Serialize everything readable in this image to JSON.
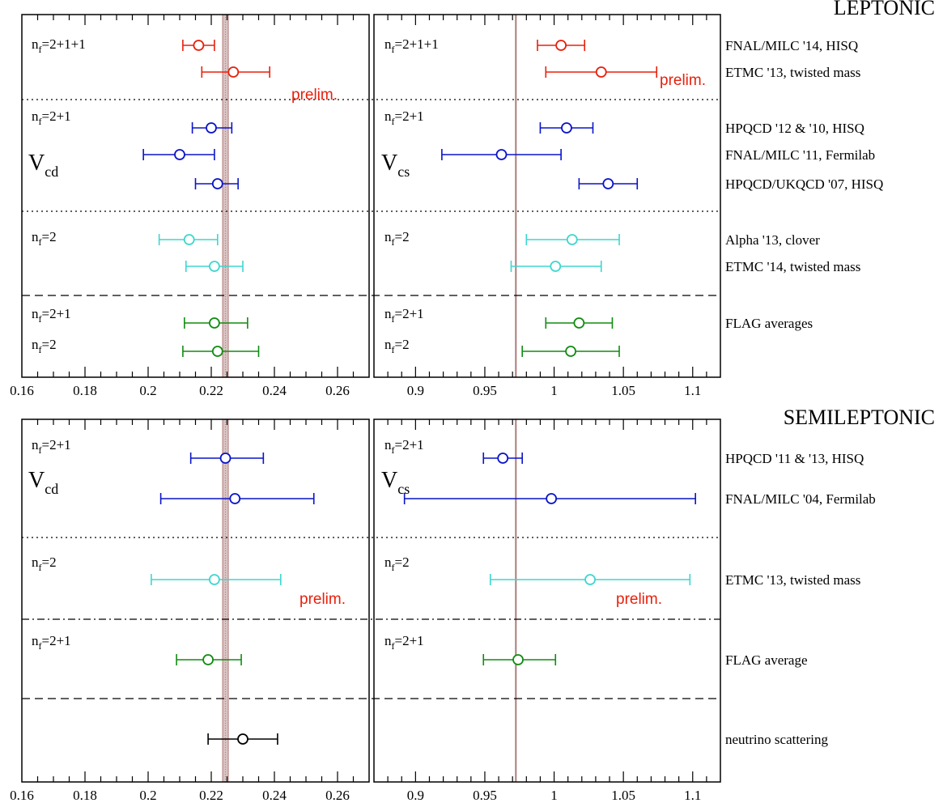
{
  "colors": {
    "red": "#e8200c",
    "blue": "#0a14c8",
    "cyan": "#3fd6cf",
    "green": "#108c10",
    "black": "#000000",
    "band": "#b07a7a"
  },
  "sections": {
    "leptonic": "LEPTONIC",
    "semileptonic": "SEMILEPTONIC"
  },
  "axes": {
    "vcd": {
      "xlim": [
        0.16,
        0.27
      ],
      "ticks": [
        "0.16",
        "0.18",
        "0.2",
        "0.22",
        "0.24",
        "0.26"
      ],
      "tick_values": [
        0.16,
        0.18,
        0.2,
        0.22,
        0.24,
        0.26
      ]
    },
    "vcs": {
      "xlim": [
        0.87,
        1.12
      ],
      "ticks": [
        "0.9",
        "0.95",
        "1",
        "1.05",
        "1.1"
      ],
      "tick_values": [
        0.9,
        0.95,
        1.0,
        1.05,
        1.1
      ]
    }
  },
  "panel_labels": {
    "vcd": {
      "main": "V",
      "sub": "cd"
    },
    "vcs": {
      "main": "V",
      "sub": "cs"
    }
  },
  "prelim_label": "prelim.",
  "chart_data": [
    {
      "type": "scatter",
      "id": "leptonic",
      "title": "LEPTONIC",
      "band": {
        "vcd": [
          0.2236,
          0.2254
        ],
        "vcs": 0.9724
      },
      "groups": [
        {
          "nf": {
            "n": "n",
            "sub": "f",
            "rest": "=2+1+1"
          },
          "color": "red",
          "separator_after": "dotted",
          "prelim": true
        },
        {
          "nf": {
            "n": "n",
            "sub": "f",
            "rest": "=2+1"
          },
          "color": "blue",
          "separator_after": "dotted",
          "prelim": false
        },
        {
          "nf": {
            "n": "n",
            "sub": "f",
            "rest": "=2"
          },
          "color": "cyan",
          "separator_after": "dashed",
          "prelim": true
        },
        {
          "nf": [
            {
              "n": "n",
              "sub": "f",
              "rest": "=2+1"
            },
            {
              "n": "n",
              "sub": "f",
              "rest": "=2"
            }
          ],
          "color": "green",
          "separator_after": "",
          "prelim": false
        }
      ],
      "rows": [
        {
          "label": "FNAL/MILC '14, HISQ",
          "color": "red",
          "vcd": [
            0.216,
            0.211,
            0.221
          ],
          "vcs": [
            1.005,
            0.988,
            1.022
          ]
        },
        {
          "label": "ETMC '13, twisted mass",
          "color": "red",
          "vcd": [
            0.227,
            0.217,
            0.2385
          ],
          "vcs": [
            1.034,
            0.994,
            1.074
          ]
        },
        {
          "label": "HPQCD '12 & '10, HISQ",
          "color": "blue",
          "vcd": [
            0.22,
            0.214,
            0.2265
          ],
          "vcs": [
            1.009,
            0.99,
            1.028
          ]
        },
        {
          "label": "FNAL/MILC '11, Fermilab",
          "color": "blue",
          "vcd": [
            0.21,
            0.1985,
            0.221
          ],
          "vcs": [
            0.962,
            0.919,
            1.005
          ]
        },
        {
          "label": "HPQCD/UKQCD '07, HISQ",
          "color": "blue",
          "vcd": [
            0.222,
            0.215,
            0.2285
          ],
          "vcs": [
            1.039,
            1.018,
            1.06
          ]
        },
        {
          "label": "Alpha '13, clover",
          "color": "cyan",
          "vcd": [
            0.213,
            0.2035,
            0.222
          ],
          "vcs": [
            1.013,
            0.98,
            1.047
          ]
        },
        {
          "label": "ETMC '14, twisted mass",
          "color": "cyan",
          "vcd": [
            0.221,
            0.212,
            0.23
          ],
          "vcs": [
            1.001,
            0.969,
            1.034
          ]
        },
        {
          "label": "FLAG averages",
          "color": "green",
          "vcd": [
            0.221,
            0.2115,
            0.2315
          ],
          "vcs": [
            1.018,
            0.994,
            1.042
          ]
        },
        {
          "label": "",
          "color": "green",
          "vcd": [
            0.222,
            0.211,
            0.235
          ],
          "vcs": [
            1.012,
            0.977,
            1.047
          ]
        }
      ]
    },
    {
      "type": "scatter",
      "id": "semileptonic",
      "title": "SEMILEPTONIC",
      "band": {
        "vcd": [
          0.2236,
          0.2254
        ],
        "vcs": 0.9724
      },
      "groups": [
        {
          "nf": {
            "n": "n",
            "sub": "f",
            "rest": "=2+1"
          },
          "color": "blue",
          "separator_after": "dotted",
          "prelim": false
        },
        {
          "nf": {
            "n": "n",
            "sub": "f",
            "rest": "=2"
          },
          "color": "cyan",
          "separator_after": "dashdot",
          "prelim": true
        },
        {
          "nf": {
            "n": "n",
            "sub": "f",
            "rest": "=2+1"
          },
          "color": "green",
          "separator_after": "dashed",
          "prelim": false
        },
        {
          "nf": null,
          "color": "black",
          "separator_after": "",
          "prelim": false
        }
      ],
      "rows": [
        {
          "label": "HPQCD '11 & '13, HISQ",
          "color": "blue",
          "vcd": [
            0.2245,
            0.2135,
            0.2365
          ],
          "vcs": [
            0.963,
            0.949,
            0.977
          ]
        },
        {
          "label": "FNAL/MILC '04, Fermilab",
          "color": "blue",
          "vcd": [
            0.2275,
            0.204,
            0.2525
          ],
          "vcs": [
            0.998,
            0.892,
            1.102
          ]
        },
        {
          "label": "ETMC '13, twisted mass",
          "color": "cyan",
          "vcd": [
            0.221,
            0.201,
            0.242
          ],
          "vcs": [
            1.026,
            0.954,
            1.098
          ]
        },
        {
          "label": "FLAG average",
          "color": "green",
          "vcd": [
            0.219,
            0.209,
            0.2295
          ],
          "vcs": [
            0.974,
            0.949,
            1.001
          ]
        },
        {
          "label": "neutrino scattering",
          "color": "black",
          "vcd": [
            0.23,
            0.219,
            0.241
          ],
          "vcs": null
        }
      ]
    }
  ]
}
